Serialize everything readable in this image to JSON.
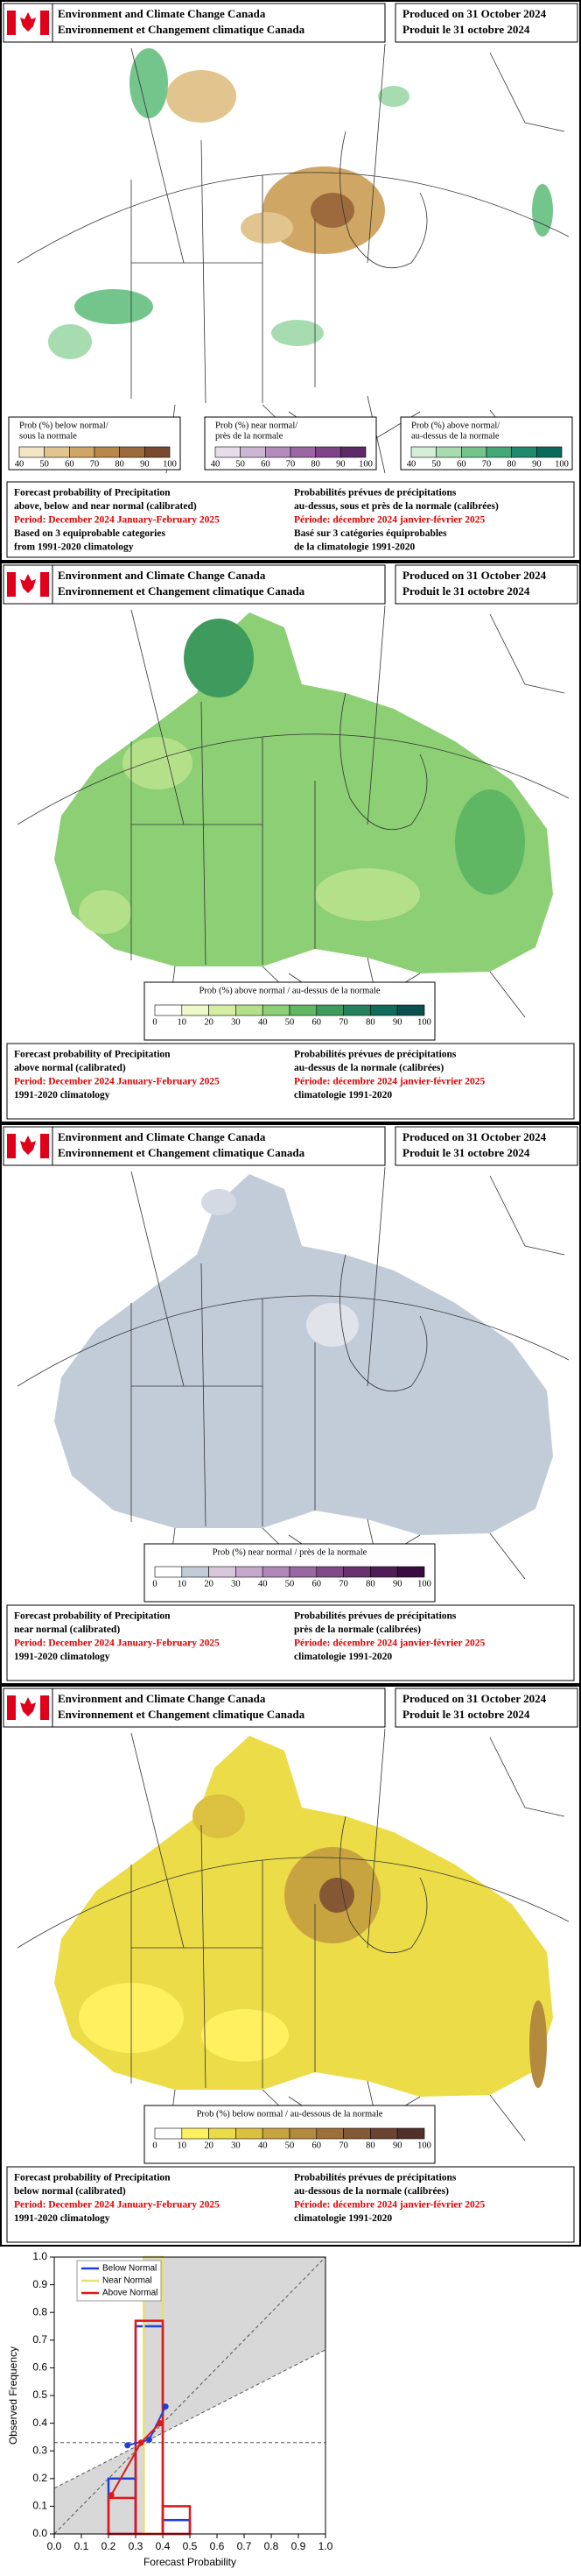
{
  "header": {
    "agency_en": "Environment and Climate Change Canada",
    "agency_fr": "Environnement et Changement climatique Canada",
    "produced_en": "Produced on 31 October 2024",
    "produced_fr": "Produit le 31 octobre 2024"
  },
  "panels": [
    {
      "legends": [
        {
          "title_lines": [
            "Prob (%) below normal/",
            "sous la normale"
          ],
          "ticks": [
            "40",
            "50",
            "60",
            "70",
            "80",
            "90",
            "100"
          ],
          "colors": [
            "#f3e6c4",
            "#e2c58e",
            "#d0a664",
            "#b98848",
            "#9c6a3c",
            "#7a4a30"
          ]
        },
        {
          "title_lines": [
            "Prob (%) near normal/",
            "près de la normale"
          ],
          "ticks": [
            "40",
            "50",
            "60",
            "70",
            "80",
            "90",
            "100"
          ],
          "colors": [
            "#e6dcea",
            "#cdb6d4",
            "#b48cbc",
            "#9a66a3",
            "#7f4487",
            "#5c2a66"
          ]
        },
        {
          "title_lines": [
            "Prob (%) above normal/",
            "au-dessus de la normale"
          ],
          "ticks": [
            "40",
            "50",
            "60",
            "70",
            "80",
            "90",
            "100"
          ],
          "colors": [
            "#d5eed8",
            "#a6dcb0",
            "#74c58c",
            "#44a878",
            "#1f8a6c",
            "#0a6a5a"
          ]
        }
      ],
      "caption_en": {
        "heading": [
          "Forecast probability of Precipitation",
          "above, below and near normal (calibrated)"
        ],
        "period": "Period: December 2024 January-February 2025",
        "notes": [
          "Based on 3 equiprobable categories",
          "from 1991-2020 climatology"
        ]
      },
      "caption_fr": {
        "heading": [
          "Probabilités prévues de précipitations",
          "au-dessus, sous et près de la normale (calibrées)"
        ],
        "period": "Période: décembre 2024 janvier-février 2025",
        "notes": [
          "Basé sur 3 catégories équiprobables",
          "de la climatologie 1991-2020"
        ]
      }
    },
    {
      "legends": [
        {
          "title_lines": [
            "Prob (%) above normal / au-dessus de la normale"
          ],
          "ticks": [
            "0",
            "10",
            "20",
            "30",
            "40",
            "50",
            "60",
            "70",
            "80",
            "90",
            "100"
          ],
          "colors": [
            "#ffffff",
            "#eef8c8",
            "#d6eea4",
            "#b4e08a",
            "#8ccf74",
            "#5fb764",
            "#3f9a5e",
            "#24805c",
            "#116a5a",
            "#0a5050"
          ]
        }
      ],
      "caption_en": {
        "heading": [
          "Forecast probability of Precipitation",
          "above normal (calibrated)"
        ],
        "period": "Period: December 2024 January-February 2025",
        "notes": [
          "1991-2020 climatology"
        ]
      },
      "caption_fr": {
        "heading": [
          "Probabilités prévues de précipitations",
          "au-dessus de la normale (calibrées)"
        ],
        "period": "Période: décembre 2024 janvier-février 2025",
        "notes": [
          "climatologie 1991-2020"
        ]
      }
    },
    {
      "legends": [
        {
          "title_lines": [
            "Prob (%) near normal / près de la normale"
          ],
          "ticks": [
            "0",
            "10",
            "20",
            "30",
            "40",
            "50",
            "60",
            "70",
            "80",
            "90",
            "100"
          ],
          "colors": [
            "#ffffff",
            "#c2ccd8",
            "#d9c8dc",
            "#c6a8cc",
            "#b088b8",
            "#9868a0",
            "#804a88",
            "#68326e",
            "#501c56",
            "#3a0a40"
          ]
        }
      ],
      "caption_en": {
        "heading": [
          "Forecast probability of Precipitation",
          "near normal (calibrated)"
        ],
        "period": "Period: December 2024 January-February 2025",
        "notes": [
          "1991-2020 climatology"
        ]
      },
      "caption_fr": {
        "heading": [
          "Probabilités prévues de précipitations",
          "près de la normale (calibrées)"
        ],
        "period": "Période: décembre 2024 janvier-février 2025",
        "notes": [
          "climatologie 1991-2020"
        ]
      }
    },
    {
      "legends": [
        {
          "title_lines": [
            "Prob (%) below normal / au-dessous de la normale"
          ],
          "ticks": [
            "0",
            "10",
            "20",
            "30",
            "40",
            "50",
            "60",
            "70",
            "80",
            "90",
            "100"
          ],
          "colors": [
            "#ffffff",
            "#fff060",
            "#ecdc48",
            "#dcc040",
            "#c8a440",
            "#b48a3e",
            "#9c7038",
            "#845834",
            "#6c4230",
            "#52302a"
          ]
        }
      ],
      "caption_en": {
        "heading": [
          "Forecast probability of Precipitation",
          "below normal (calibrated)"
        ],
        "period": "Period: December 2024 January-February 2025",
        "notes": [
          "1991-2020 climatology"
        ]
      },
      "caption_fr": {
        "heading": [
          "Probabilités prévues de précipitations",
          "au-dessous de la normale (calibrées)"
        ],
        "period": "Période: décembre 2024 janvier-février 2025",
        "notes": [
          "climatologie 1991-2020"
        ]
      }
    }
  ],
  "chart_data": {
    "type": "reliability",
    "xlabel": "Forecast Probability",
    "ylabel": "Observed Frequency",
    "xlim": [
      0,
      1
    ],
    "ylim": [
      0,
      1
    ],
    "xticks": [
      {
        "value": 0,
        "label": "0.0"
      },
      0.1,
      0.2,
      0.3,
      0.4,
      0.5,
      0.6,
      0.7,
      0.8,
      0.9,
      {
        "value": 1,
        "label": "1.0"
      }
    ],
    "yticks": [
      {
        "value": 0,
        "label": "0.0"
      },
      0.1,
      0.2,
      0.3,
      0.4,
      0.5,
      0.6,
      0.7,
      0.8,
      0.9,
      {
        "value": 1,
        "label": "1.0"
      }
    ],
    "climatology": 0.33,
    "series": [
      {
        "name": "Below Normal",
        "color": "#1f3fd8",
        "x": [
          0.27,
          0.35,
          0.41
        ],
        "values": [
          0.32,
          0.34,
          0.46
        ],
        "bins": [
          0.2,
          0.3,
          0.4,
          0.5
        ],
        "counts": [
          0.2,
          0.75,
          0.05
        ]
      },
      {
        "name": "Near Normal",
        "color": "#e8e070",
        "x": [],
        "values": [],
        "bins": [
          0.33,
          0.4
        ],
        "counts": [
          1.0
        ]
      },
      {
        "name": "Above Normal",
        "color": "#e01818",
        "x": [
          0.21,
          0.32,
          0.39
        ],
        "values": [
          0.14,
          0.33,
          0.4
        ],
        "bins": [
          0.2,
          0.3,
          0.4,
          0.5
        ],
        "counts": [
          0.13,
          0.77,
          0.1
        ]
      }
    ]
  }
}
